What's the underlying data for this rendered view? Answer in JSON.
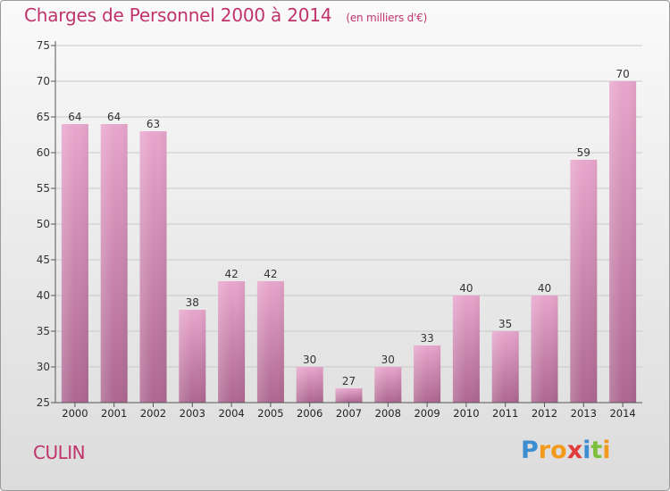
{
  "title": "Charges de Personnel 2000 à 2014",
  "subtitle": "(en milliers d'€)",
  "location": "CULIN",
  "logo": {
    "text": "Proxiti",
    "letters": [
      {
        "ch": "P",
        "color": "#3c8ed1"
      },
      {
        "ch": "r",
        "color": "#f29a1c"
      },
      {
        "ch": "o",
        "color": "#f29a1c"
      },
      {
        "ch": "x",
        "color": "#e23b3b"
      },
      {
        "ch": "i",
        "color": "#3c8ed1"
      },
      {
        "ch": "t",
        "color": "#7cbf3a"
      },
      {
        "ch": "i",
        "color": "#f29a1c"
      }
    ]
  },
  "colors": {
    "accent": "#c0336b",
    "bar_top": "#e8a6cc",
    "bar_bottom": "#ad6790"
  },
  "chart_data": {
    "type": "bar",
    "categories": [
      "2000",
      "2001",
      "2002",
      "2003",
      "2004",
      "2005",
      "2006",
      "2007",
      "2008",
      "2009",
      "2010",
      "2011",
      "2012",
      "2013",
      "2014"
    ],
    "values": [
      64,
      64,
      63,
      38,
      42,
      42,
      30,
      27,
      30,
      33,
      40,
      35,
      40,
      59,
      70
    ],
    "title": "Charges de Personnel 2000 à 2014",
    "xlabel": "",
    "ylabel": "",
    "ylim": [
      25,
      75
    ],
    "yticks": [
      25,
      30,
      35,
      40,
      45,
      50,
      55,
      60,
      65,
      70,
      75
    ],
    "grid": true,
    "legend": "none"
  }
}
